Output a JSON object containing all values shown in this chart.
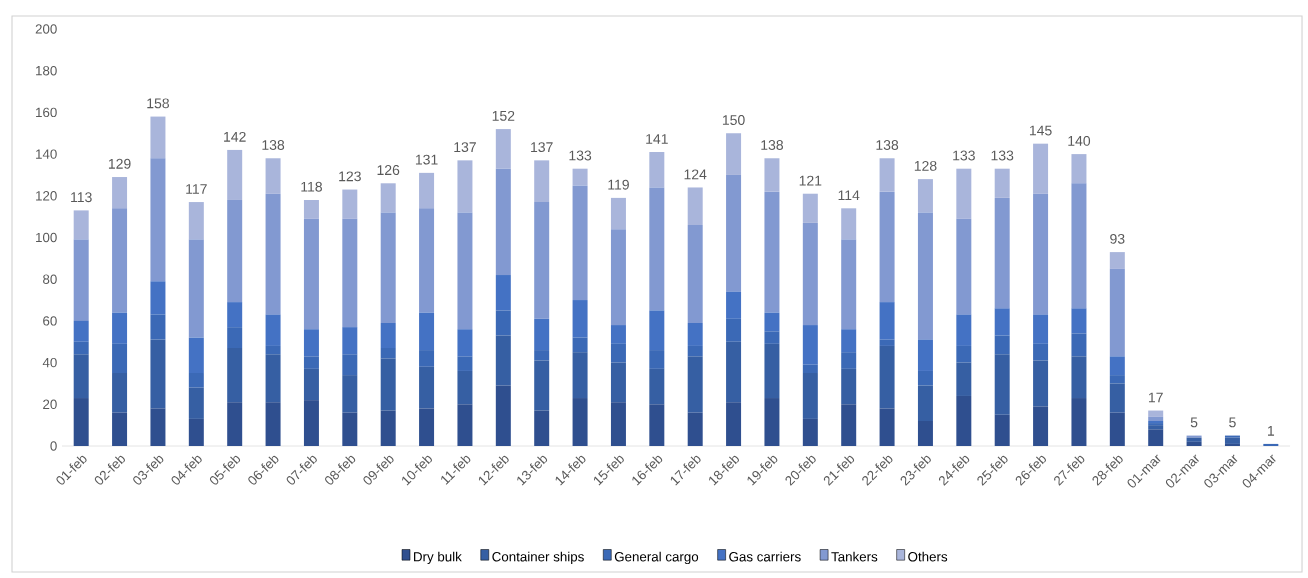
{
  "chart_data": {
    "type": "bar",
    "stacked": true,
    "categories": [
      "01-feb",
      "02-feb",
      "03-feb",
      "04-feb",
      "05-feb",
      "06-feb",
      "07-feb",
      "08-feb",
      "09-feb",
      "10-feb",
      "11-feb",
      "12-feb",
      "13-feb",
      "14-feb",
      "15-feb",
      "16-feb",
      "17-feb",
      "18-feb",
      "19-feb",
      "20-feb",
      "21-feb",
      "22-feb",
      "23-feb",
      "24-feb",
      "25-feb",
      "26-feb",
      "27-feb",
      "28-feb",
      "01-mar",
      "02-mar",
      "03-mar",
      "04-mar"
    ],
    "series": [
      {
        "name": "Dry bulk",
        "color": "#2f4f8f",
        "values": [
          23,
          16,
          18,
          13,
          21,
          21,
          22,
          16,
          17,
          18,
          20,
          29,
          17,
          23,
          21,
          20,
          16,
          21,
          23,
          13,
          20,
          18,
          12,
          24,
          15,
          19,
          23,
          16,
          8,
          2,
          1,
          0
        ]
      },
      {
        "name": "Container ships",
        "color": "#365fa3",
        "values": [
          21,
          19,
          33,
          15,
          26,
          23,
          15,
          18,
          25,
          20,
          16,
          24,
          24,
          22,
          19,
          17,
          27,
          29,
          26,
          22,
          17,
          30,
          17,
          16,
          29,
          22,
          20,
          14,
          2,
          2,
          3,
          0
        ]
      },
      {
        "name": "General cargo",
        "color": "#3b69b6",
        "values": [
          6,
          14,
          12,
          7,
          10,
          4,
          6,
          10,
          5,
          8,
          7,
          12,
          5,
          7,
          9,
          9,
          5,
          11,
          6,
          4,
          8,
          3,
          7,
          8,
          9,
          8,
          11,
          4,
          1,
          0,
          1,
          1
        ]
      },
      {
        "name": "Gas carriers",
        "color": "#4472c4",
        "values": [
          10,
          15,
          16,
          17,
          12,
          15,
          13,
          13,
          12,
          18,
          13,
          17,
          15,
          18,
          9,
          19,
          11,
          13,
          9,
          19,
          11,
          18,
          15,
          15,
          13,
          14,
          12,
          9,
          1,
          0,
          0,
          0
        ]
      },
      {
        "name": "Tankers",
        "color": "#8299d1",
        "values": [
          39,
          50,
          59,
          47,
          49,
          58,
          53,
          52,
          53,
          50,
          56,
          51,
          56,
          55,
          46,
          59,
          47,
          56,
          58,
          49,
          43,
          53,
          61,
          46,
          53,
          58,
          60,
          42,
          2,
          1,
          0,
          0
        ]
      },
      {
        "name": "Others",
        "color": "#a9b5db",
        "values": [
          14,
          15,
          20,
          18,
          24,
          17,
          9,
          14,
          14,
          17,
          25,
          19,
          20,
          8,
          15,
          17,
          18,
          20,
          16,
          14,
          15,
          16,
          16,
          24,
          14,
          24,
          14,
          8,
          3,
          0,
          0,
          0
        ]
      }
    ],
    "totals": [
      "113",
      "129",
      "158",
      "117",
      "142",
      "138",
      "118",
      "123",
      "126",
      "131",
      "137",
      "152",
      "137",
      "133",
      "119",
      "141",
      "124",
      "150",
      "138",
      "121",
      "114",
      "138",
      "128",
      "133",
      "133",
      "145",
      "140",
      "93",
      "17",
      "5",
      "5",
      "1"
    ],
    "ylim": [
      0,
      200
    ],
    "yticks": [
      0,
      20,
      40,
      60,
      80,
      100,
      120,
      140,
      160,
      180,
      200
    ],
    "legend": "bottom"
  }
}
